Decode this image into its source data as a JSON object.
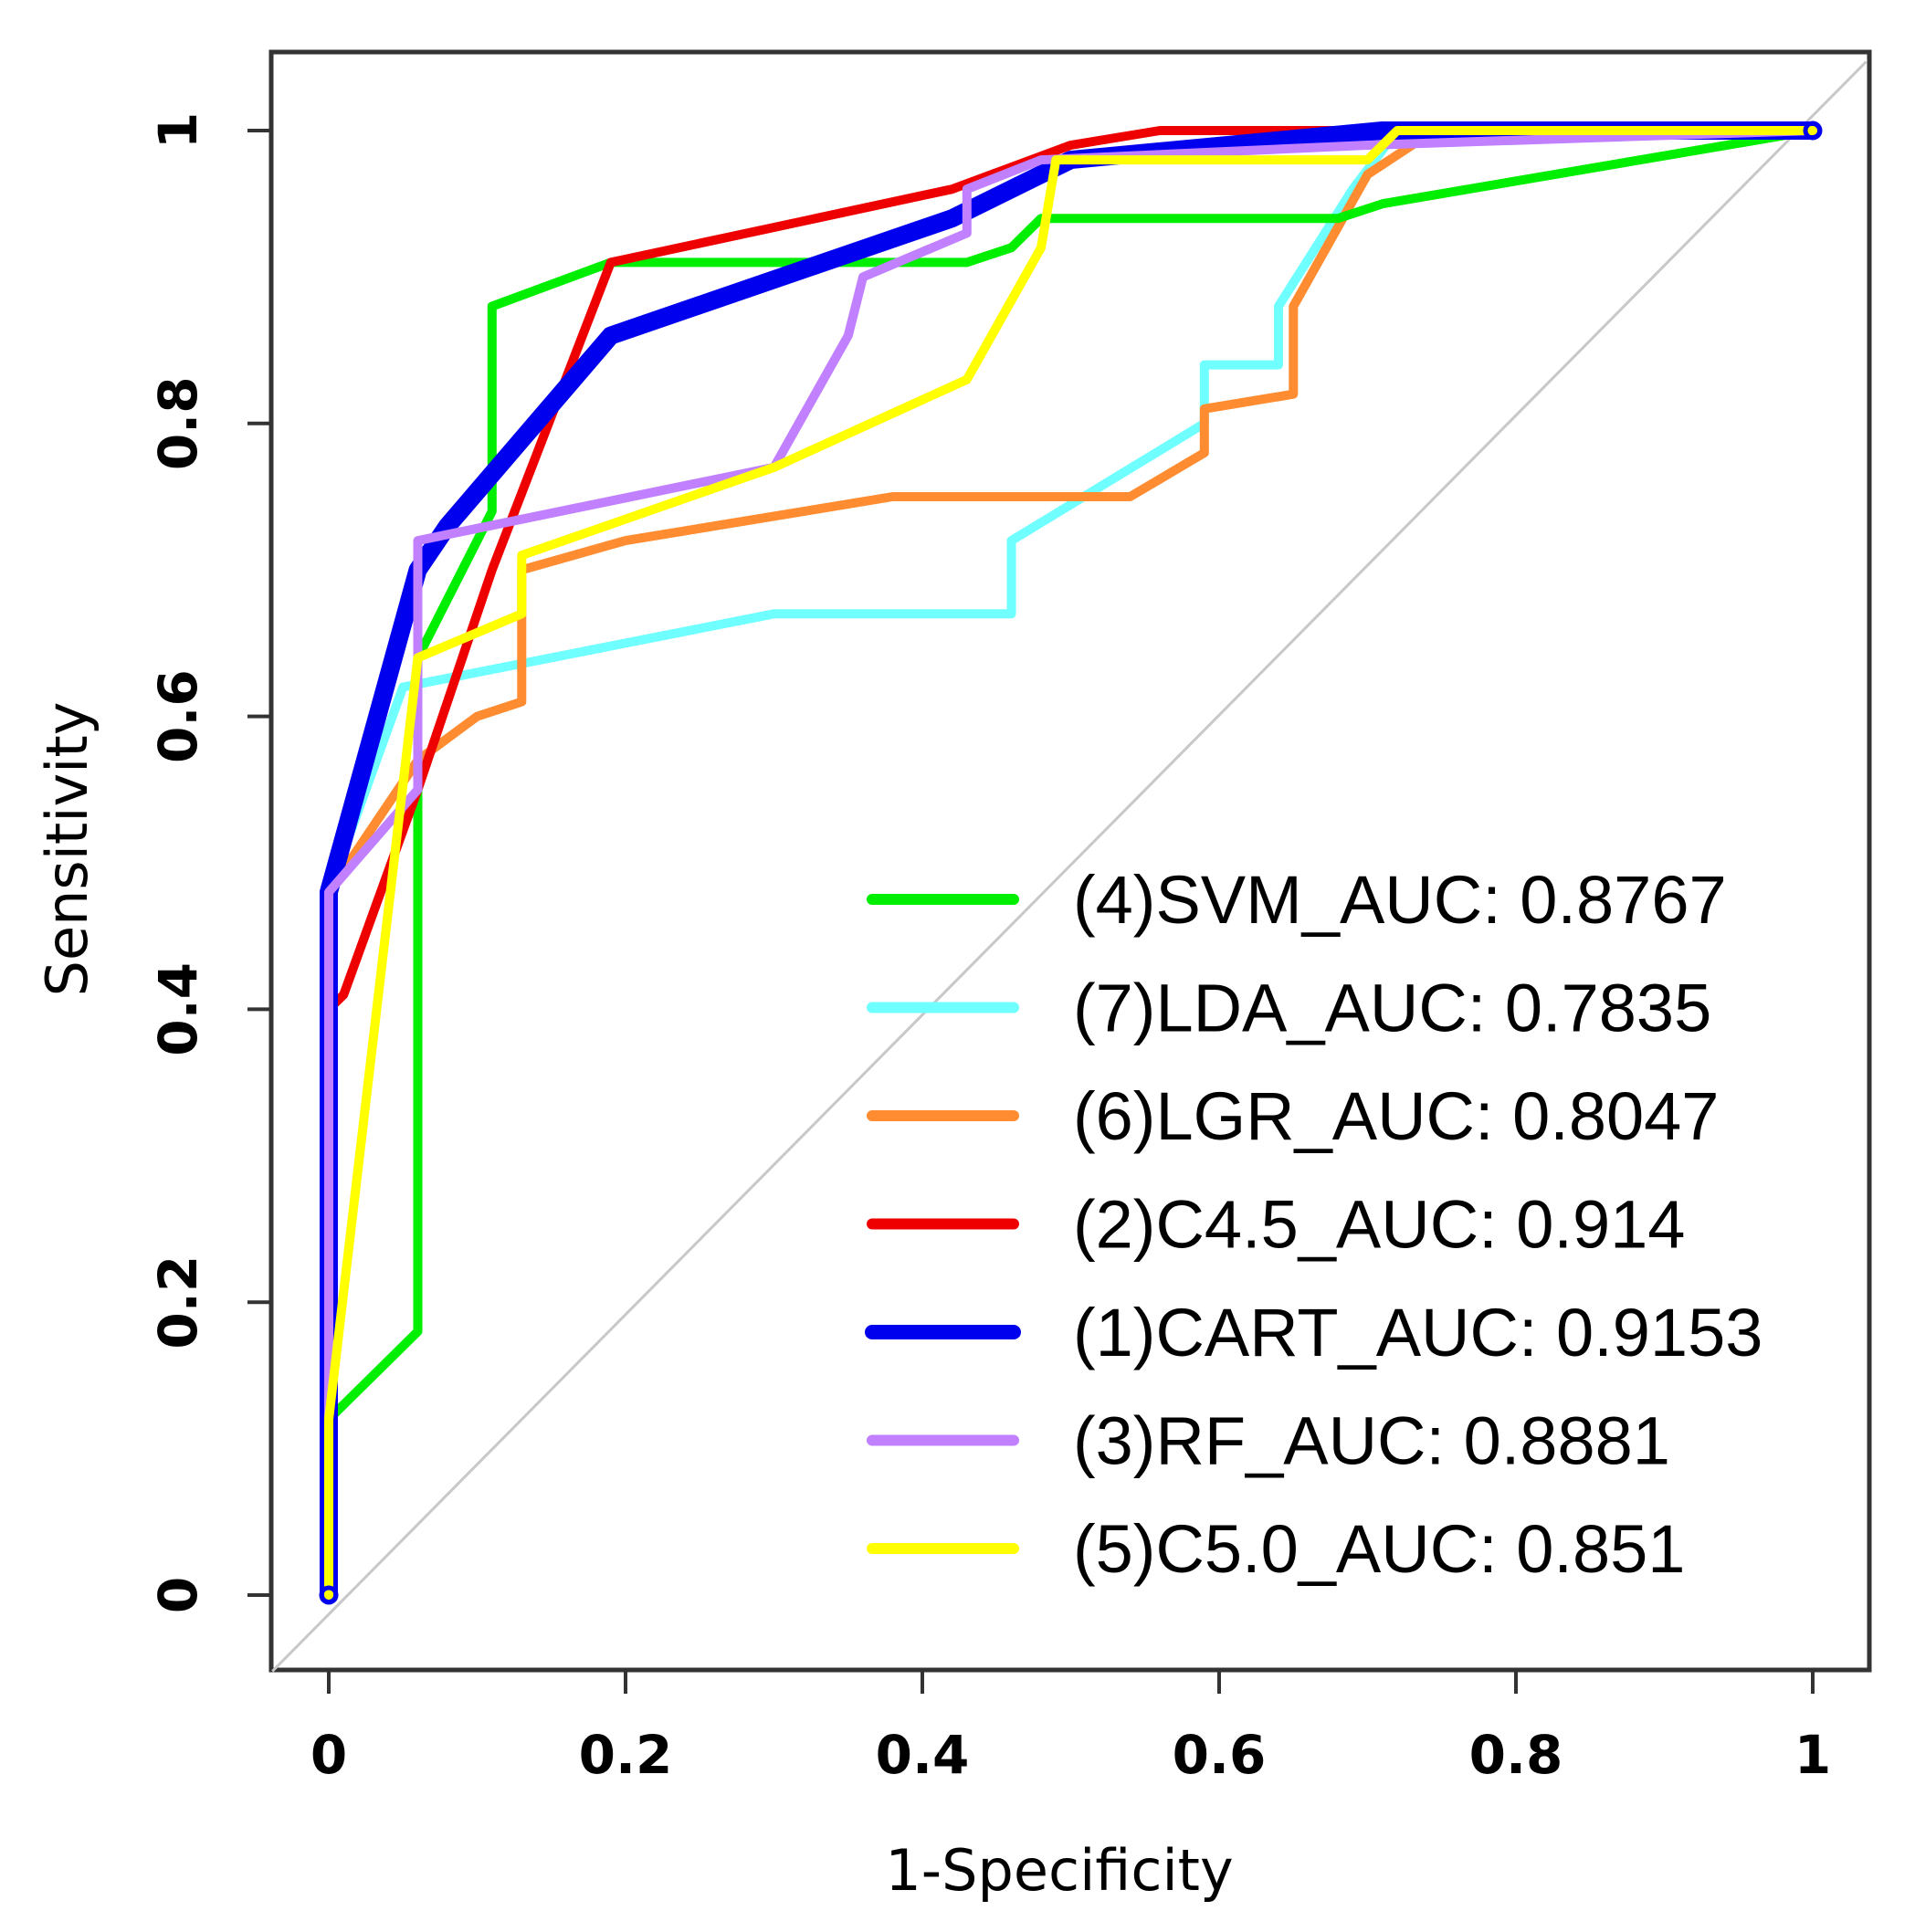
{
  "chart_data": {
    "type": "line",
    "xlabel": "1-Specificity",
    "ylabel": "Sensitivity",
    "xlim": [
      0,
      1
    ],
    "ylim": [
      0,
      1
    ],
    "x_ticks": [
      "0",
      "0.2",
      "0.4",
      "0.6",
      "0.8",
      "1"
    ],
    "y_ticks": [
      "0",
      "0.2",
      "0.4",
      "0.6",
      "0.8",
      "1"
    ],
    "diagonal_reference": true,
    "legend_position": "bottom-right",
    "series": [
      {
        "name": "(4)SVM_AUC: 0.8767",
        "color": "#00ee00",
        "x": [
          0,
          0,
          0.06,
          0.06,
          0.11,
          0.11,
          0.19,
          0.43,
          0.46,
          0.48,
          0.68,
          0.71,
          1
        ],
        "y": [
          0,
          0.12,
          0.18,
          0.64,
          0.74,
          0.88,
          0.91,
          0.91,
          0.92,
          0.94,
          0.94,
          0.95,
          1
        ]
      },
      {
        "name": "(7)LDA_AUC: 0.7835",
        "color": "#70ffff",
        "x": [
          0,
          0,
          0.05,
          0.2,
          0.3,
          0.46,
          0.46,
          0.59,
          0.59,
          0.64,
          0.64,
          0.69,
          0.72,
          1
        ],
        "y": [
          0,
          0.48,
          0.62,
          0.65,
          0.67,
          0.67,
          0.72,
          0.8,
          0.84,
          0.84,
          0.88,
          0.96,
          1,
          1
        ]
      },
      {
        "name": "(6)LGR_AUC: 0.8047",
        "color": "#ff8c30",
        "x": [
          0,
          0,
          0.06,
          0.1,
          0.13,
          0.13,
          0.2,
          0.38,
          0.54,
          0.59,
          0.59,
          0.65,
          0.65,
          0.7,
          0.73
        ],
        "y": [
          0,
          0.48,
          0.57,
          0.6,
          0.61,
          0.7,
          0.72,
          0.75,
          0.75,
          0.78,
          0.81,
          0.82,
          0.88,
          0.97,
          0.99
        ]
      },
      {
        "name": "(2)C4.5_AUC: 0.914",
        "color": "#ee0000",
        "x": [
          0,
          0,
          0.01,
          0.06,
          0.11,
          0.19,
          0.42,
          0.5,
          0.56,
          1
        ],
        "y": [
          0,
          0.4,
          0.41,
          0.55,
          0.7,
          0.91,
          0.96,
          0.99,
          1,
          1
        ]
      },
      {
        "name": "(1)CART_AUC: 0.9153",
        "color": "#0000ee",
        "x": [
          0,
          0,
          0.06,
          0.08,
          0.19,
          0.42,
          0.5,
          0.71,
          1
        ],
        "y": [
          0,
          0.48,
          0.7,
          0.73,
          0.86,
          0.94,
          0.98,
          1,
          1
        ]
      },
      {
        "name": "(3)RF_AUC: 0.8881",
        "color": "#c080ff",
        "x": [
          0,
          0,
          0.06,
          0.06,
          0.3,
          0.35,
          0.36,
          0.43,
          0.43,
          0.48,
          0.7,
          1
        ],
        "y": [
          0,
          0.48,
          0.55,
          0.72,
          0.77,
          0.86,
          0.9,
          0.93,
          0.96,
          0.98,
          0.99,
          1
        ]
      },
      {
        "name": "(5)C5.0_AUC: 0.851",
        "color": "#ffff00",
        "x": [
          0,
          0,
          0.06,
          0.13,
          0.13,
          0.3,
          0.43,
          0.48,
          0.49,
          0.7,
          0.72,
          1
        ],
        "y": [
          0,
          0.12,
          0.64,
          0.67,
          0.71,
          0.77,
          0.83,
          0.92,
          0.98,
          0.98,
          1,
          1
        ]
      }
    ]
  }
}
